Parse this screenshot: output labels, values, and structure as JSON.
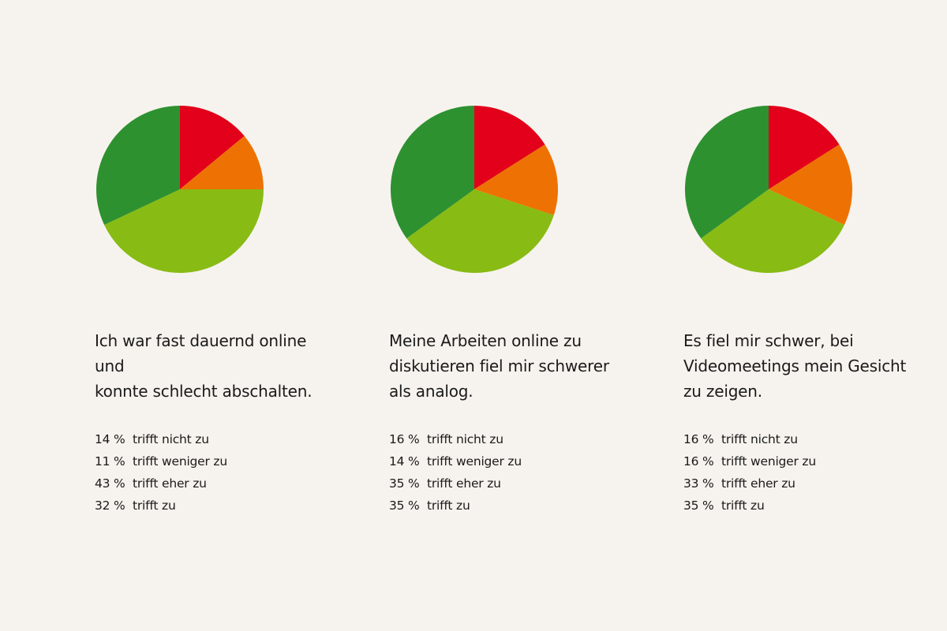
{
  "colors": {
    "trifft_nicht_zu": "#e2001a",
    "trifft_weniger_zu": "#ee7203",
    "trifft_eher_zu": "#88bb14",
    "trifft_zu": "#2e9130"
  },
  "chart_data": [
    {
      "type": "pie",
      "title": "Ich war fast dauernd online und konnte schlecht abschalten.",
      "title_lines": [
        "Ich war fast dauernd online und",
        "konnte schlecht abschalten."
      ],
      "slices": [
        {
          "label": "trifft nicht zu",
          "value": 14,
          "display": "14 %"
        },
        {
          "label": "trifft weniger zu",
          "value": 11,
          "display": "11 %"
        },
        {
          "label": "trifft eher zu",
          "value": 43,
          "display": "43 %"
        },
        {
          "label": "trifft zu",
          "value": 32,
          "display": "32 %"
        }
      ]
    },
    {
      "type": "pie",
      "title": "Meine Arbeiten online zu diskutieren fiel mir schwerer als analog.",
      "title_lines": [
        "Meine Arbeiten online zu",
        "diskutieren fiel mir schwerer",
        "als analog."
      ],
      "slices": [
        {
          "label": "trifft nicht zu",
          "value": 16,
          "display": "16 %"
        },
        {
          "label": "trifft weniger zu",
          "value": 14,
          "display": "14 %"
        },
        {
          "label": "trifft eher zu",
          "value": 35,
          "display": "35 %"
        },
        {
          "label": "trifft zu",
          "value": 35,
          "display": "35 %"
        }
      ]
    },
    {
      "type": "pie",
      "title": "Es fiel mir schwer, bei Videomeetings mein Gesicht zu zeigen.",
      "title_lines": [
        "Es fiel mir schwer, bei",
        "Videomeetings mein Gesicht",
        "zu zeigen."
      ],
      "slices": [
        {
          "label": "trifft nicht zu",
          "value": 16,
          "display": "16 %"
        },
        {
          "label": "trifft weniger zu",
          "value": 16,
          "display": "16 %"
        },
        {
          "label": "trifft eher zu",
          "value": 33,
          "display": "33 %"
        },
        {
          "label": "trifft zu",
          "value": 35,
          "display": "35 %"
        }
      ]
    }
  ]
}
